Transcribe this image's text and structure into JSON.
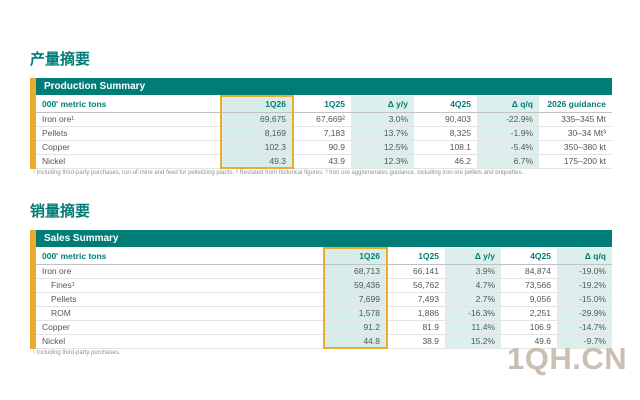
{
  "page": {
    "section1_title": "产量摘要",
    "section2_title": "销量摘要",
    "watermark": "1QH.CN"
  },
  "colors": {
    "teal": "#007d77",
    "light_teal": "#ddefec",
    "gold": "#eaac2f",
    "text": "#54565a",
    "footnote": "#8f9193",
    "watermark": "#cabfb1"
  },
  "production_table": {
    "title": "Production Summary",
    "unit_header": "000' metric tons",
    "columns": [
      {
        "label": "1Q26",
        "highlight": true
      },
      {
        "label": "1Q25",
        "highlight": false
      },
      {
        "label": "Δ y/y",
        "shaded": true
      },
      {
        "label": "4Q25",
        "shaded": false
      },
      {
        "label": "Δ q/q",
        "shaded": true
      },
      {
        "label": "2026 guidance",
        "shaded": false
      }
    ],
    "rows": [
      {
        "label": "Iron ore¹",
        "indent": false,
        "values": [
          "69,675",
          "67,669²",
          "3.0%",
          "90,403",
          "-22.9%",
          "335–345 Mt"
        ]
      },
      {
        "label": "Pellets",
        "indent": false,
        "values": [
          "8,169",
          "7,183",
          "13.7%",
          "8,325",
          "-1.9%",
          "30–34 Mt³"
        ]
      },
      {
        "label": "Copper",
        "indent": false,
        "values": [
          "102.3",
          "90.9",
          "12.5%",
          "108.1",
          "-5.4%",
          "350–380 kt"
        ]
      },
      {
        "label": "Nickel",
        "indent": false,
        "values": [
          "49.3",
          "43.9",
          "12.3%",
          "46.2",
          "6.7%",
          "175–200 kt"
        ]
      }
    ],
    "footnote": "¹ Including third-party purchases, run-of-mine and feed for pelletizing plants. ² Restated from historical figures. ³ Iron ore agglomerates guidance, including iron ore pellets and briquettes."
  },
  "sales_table": {
    "title": "Sales Summary",
    "unit_header": "000' metric tons",
    "columns": [
      {
        "label": "1Q26",
        "highlight": true
      },
      {
        "label": "1Q25",
        "highlight": false
      },
      {
        "label": "Δ y/y",
        "shaded": true
      },
      {
        "label": "4Q25",
        "shaded": false
      },
      {
        "label": "Δ q/q",
        "shaded": true
      }
    ],
    "rows": [
      {
        "label": "Iron ore",
        "indent": false,
        "values": [
          "68,713",
          "66,141",
          "3.9%",
          "84,874",
          "-19.0%"
        ]
      },
      {
        "label": "Fines¹",
        "indent": true,
        "values": [
          "59,436",
          "56,762",
          "4.7%",
          "73,566",
          "-19.2%"
        ]
      },
      {
        "label": "Pellets",
        "indent": true,
        "values": [
          "7,699",
          "7,493",
          "2.7%",
          "9,056",
          "-15.0%"
        ]
      },
      {
        "label": "ROM",
        "indent": true,
        "values": [
          "1,578",
          "1,886",
          "-16.3%",
          "2,251",
          "-29.9%"
        ]
      },
      {
        "label": "Copper",
        "indent": false,
        "values": [
          "91.2",
          "81.9",
          "11.4%",
          "106.9",
          "-14.7%"
        ]
      },
      {
        "label": "Nickel",
        "indent": false,
        "values": [
          "44.8",
          "38.9",
          "15.2%",
          "49.6",
          "-9.7%"
        ]
      }
    ],
    "footnote": "¹ Including third-party purchases."
  }
}
